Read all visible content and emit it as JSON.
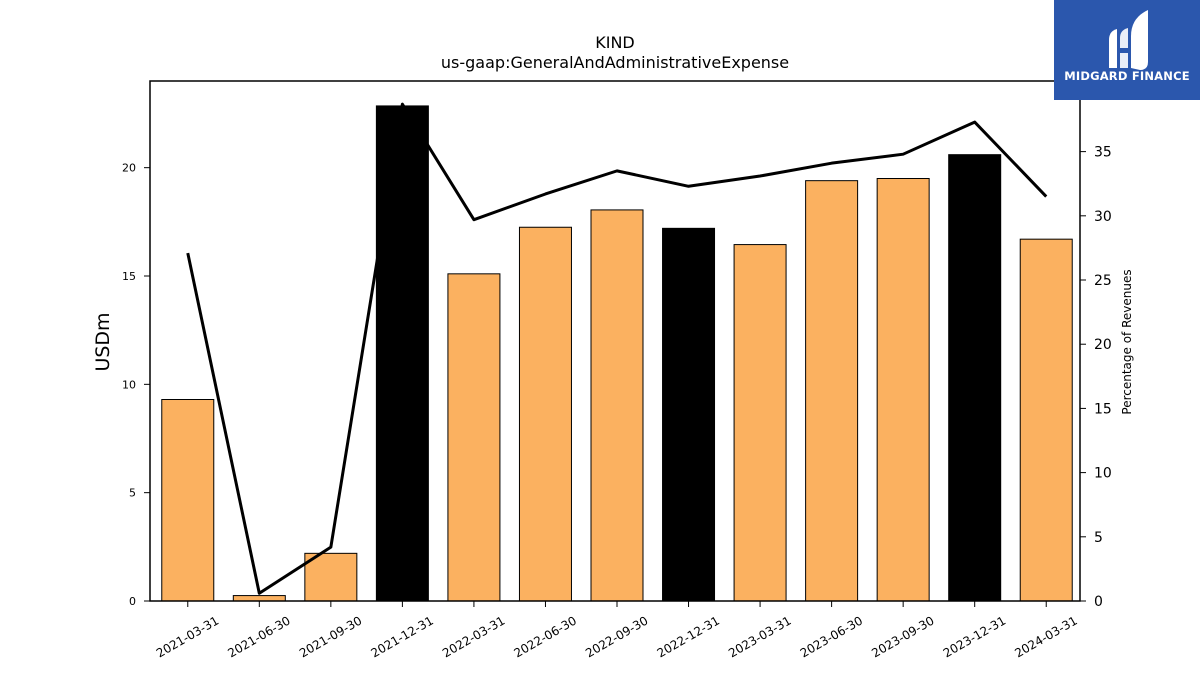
{
  "chart_data": {
    "type": "bar",
    "title": "KIND",
    "subtitle": "us-gaap:GeneralAndAdministrativeExpense",
    "ylabel": "USDm",
    "y2label": "Percentage of Revenues",
    "categories": [
      "2021-03-31",
      "2021-06-30",
      "2021-09-30",
      "2021-12-31",
      "2022-03-31",
      "2022-06-30",
      "2022-09-30",
      "2022-12-31",
      "2023-03-31",
      "2023-06-30",
      "2023-09-30",
      "2023-12-31",
      "2024-03-31"
    ],
    "series": [
      {
        "values": [
          9.3,
          0.25,
          2.2,
          22.85,
          15.1,
          17.25,
          18.05,
          17.2,
          16.45,
          19.4,
          19.5,
          20.6,
          16.7
        ]
      },
      {
        "values": [
          27.1,
          0.6,
          4.2,
          38.7,
          29.7,
          31.7,
          33.5,
          32.3,
          33.1,
          34.1,
          34.8,
          37.3,
          31.5
        ]
      }
    ],
    "bar_colors": [
      "#fbb160",
      "#fbb160",
      "#fbb160",
      "#000000",
      "#fbb160",
      "#fbb160",
      "#fbb160",
      "#000000",
      "#fbb160",
      "#fbb160",
      "#fbb160",
      "#000000",
      "#fbb160"
    ],
    "line_color": "#000000",
    "ylim": [
      0,
      24
    ],
    "y2lim": [
      0,
      40.5
    ],
    "yticks": [
      0,
      5,
      10,
      15,
      20
    ],
    "y2ticks": [
      0,
      5,
      10,
      15,
      20,
      25,
      30,
      35
    ]
  },
  "logo": {
    "text": "MIDGARD FINANCE",
    "background": "#2b57ad"
  }
}
